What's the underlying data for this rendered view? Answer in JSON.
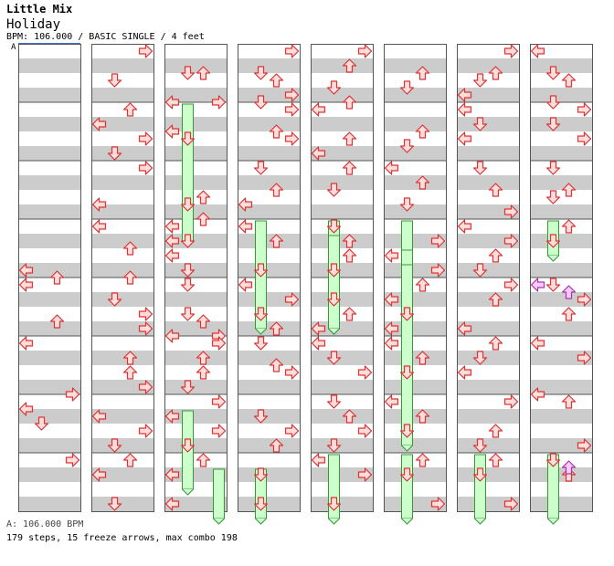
{
  "header": {
    "artist": "Little Mix",
    "title": "Holiday",
    "info": "BPM: 106.000 / BASIC SINGLE / 4 feet",
    "bpm_marker": "A"
  },
  "footer": {
    "bpm_line": "A: 106.000 BPM",
    "stats": "179 steps, 15 freeze arrows, max combo 198"
  },
  "colors": {
    "stripe": "#cccccc",
    "border": "#555555",
    "arrow_fill": "#ffdddd",
    "arrow_stroke": "#dd3333",
    "special_fill": "#ffccff",
    "special_stroke": "#aa33aa",
    "freeze_fill": "#ccffcc",
    "freeze_stroke": "#339933"
  },
  "chart": {
    "columns": 8,
    "measures_per_column": 8,
    "lanes": [
      "left",
      "down",
      "up",
      "right"
    ],
    "notes": [
      [
        0,
        3,
        3,
        1,
        "left"
      ],
      [
        0,
        3,
        3,
        3,
        "up"
      ],
      [
        0,
        4,
        0,
        1,
        "left"
      ],
      [
        0,
        4,
        2,
        3,
        "up"
      ],
      [
        0,
        5,
        0,
        1,
        "left"
      ],
      [
        0,
        5,
        3,
        3,
        "right"
      ],
      [
        0,
        6,
        1,
        3,
        "down"
      ],
      [
        0,
        6,
        0,
        3,
        "left"
      ],
      [
        0,
        7,
        0,
        1,
        "right"
      ],
      [
        1,
        0,
        0,
        1,
        "right"
      ],
      [
        1,
        0,
        2,
        2,
        "down"
      ],
      [
        1,
        1,
        0,
        1,
        "up"
      ],
      [
        1,
        1,
        1,
        2,
        "left"
      ],
      [
        1,
        1,
        2,
        1,
        "right"
      ],
      [
        1,
        1,
        3,
        1,
        "down"
      ],
      [
        1,
        2,
        0,
        1,
        "right"
      ],
      [
        1,
        2,
        2,
        3,
        "left"
      ],
      [
        1,
        3,
        0,
        1,
        "left"
      ],
      [
        1,
        3,
        1,
        3,
        "up"
      ],
      [
        1,
        3,
        3,
        3,
        "up"
      ],
      [
        1,
        4,
        1,
        1,
        "down"
      ],
      [
        1,
        4,
        2,
        1,
        "right"
      ],
      [
        1,
        4,
        3,
        1,
        "right"
      ],
      [
        1,
        5,
        1,
        1,
        "up"
      ],
      [
        1,
        5,
        2,
        1,
        "up"
      ],
      [
        1,
        5,
        3,
        1,
        "right"
      ],
      [
        1,
        6,
        1,
        1,
        "left"
      ],
      [
        1,
        6,
        2,
        1,
        "right"
      ],
      [
        1,
        6,
        3,
        1,
        "down"
      ],
      [
        1,
        7,
        0,
        1,
        "up"
      ],
      [
        1,
        7,
        1,
        1,
        "left"
      ],
      [
        1,
        7,
        3,
        1,
        "down"
      ],
      [
        2,
        0,
        1,
        3,
        "down"
      ],
      [
        2,
        0,
        1,
        3,
        "up"
      ],
      [
        2,
        0,
        3,
        3,
        "left"
      ],
      [
        2,
        0,
        3,
        3,
        "right"
      ],
      [
        2,
        1,
        1,
        3,
        "left"
      ],
      [
        2,
        1,
        2,
        1,
        "down"
      ],
      [
        2,
        2,
        2,
        1,
        "up"
      ],
      [
        2,
        2,
        2,
        3,
        "down"
      ],
      [
        2,
        2,
        3,
        3,
        "up"
      ],
      [
        2,
        3,
        0,
        1,
        "left"
      ],
      [
        2,
        3,
        1,
        1,
        "left"
      ],
      [
        2,
        3,
        1,
        1,
        "down"
      ],
      [
        2,
        3,
        2,
        1,
        "left"
      ],
      [
        2,
        3,
        3,
        1,
        "down"
      ],
      [
        2,
        4,
        0,
        1,
        "down"
      ],
      [
        2,
        4,
        2,
        1,
        "down"
      ],
      [
        2,
        4,
        2,
        3,
        "up"
      ],
      [
        2,
        4,
        3,
        3,
        "right"
      ],
      [
        2,
        4,
        3,
        3,
        "left"
      ],
      [
        2,
        5,
        0,
        1,
        "right"
      ],
      [
        2,
        5,
        1,
        1,
        "up"
      ],
      [
        2,
        5,
        2,
        1,
        "up"
      ],
      [
        2,
        5,
        3,
        1,
        "down"
      ],
      [
        2,
        6,
        0,
        1,
        "right"
      ],
      [
        2,
        6,
        1,
        1,
        "left"
      ],
      [
        2,
        6,
        2,
        1,
        "right"
      ],
      [
        2,
        6,
        3,
        1,
        "down"
      ],
      [
        2,
        7,
        0,
        1,
        "up"
      ],
      [
        2,
        7,
        1,
        1,
        "left"
      ],
      [
        2,
        7,
        3,
        1,
        "left"
      ],
      [
        3,
        0,
        0,
        1,
        "right"
      ],
      [
        3,
        0,
        1,
        3,
        "down"
      ],
      [
        3,
        0,
        2,
        1,
        "up"
      ],
      [
        3,
        0,
        3,
        3,
        "down"
      ],
      [
        3,
        0,
        3,
        1,
        "right"
      ],
      [
        3,
        1,
        0,
        1,
        "right"
      ],
      [
        3,
        1,
        1,
        3,
        "up"
      ],
      [
        3,
        1,
        2,
        1,
        "right"
      ],
      [
        3,
        2,
        0,
        1,
        "down"
      ],
      [
        3,
        2,
        1,
        3,
        "up"
      ],
      [
        3,
        2,
        2,
        3,
        "left"
      ],
      [
        3,
        3,
        0,
        1,
        "left"
      ],
      [
        3,
        3,
        1,
        1,
        "up"
      ],
      [
        3,
        3,
        3,
        1,
        "down"
      ],
      [
        3,
        4,
        0,
        1,
        "left"
      ],
      [
        3,
        4,
        1,
        1,
        "right"
      ],
      [
        3,
        4,
        2,
        1,
        "down"
      ],
      [
        3,
        4,
        3,
        1,
        "up"
      ],
      [
        3,
        5,
        0,
        1,
        "down"
      ],
      [
        3,
        5,
        1,
        3,
        "up"
      ],
      [
        3,
        5,
        2,
        1,
        "right"
      ],
      [
        3,
        6,
        1,
        1,
        "down"
      ],
      [
        3,
        6,
        2,
        1,
        "right"
      ],
      [
        3,
        6,
        3,
        1,
        "up"
      ],
      [
        3,
        7,
        1,
        1,
        "down"
      ],
      [
        3,
        7,
        3,
        1,
        "down"
      ],
      [
        4,
        0,
        0,
        1,
        "right"
      ],
      [
        4,
        0,
        1,
        1,
        "up"
      ],
      [
        4,
        0,
        2,
        3,
        "down"
      ],
      [
        4,
        0,
        3,
        3,
        "up"
      ],
      [
        4,
        1,
        0,
        1,
        "left"
      ],
      [
        4,
        1,
        2,
        1,
        "up"
      ],
      [
        4,
        1,
        3,
        1,
        "left"
      ],
      [
        4,
        2,
        0,
        1,
        "up"
      ],
      [
        4,
        2,
        1,
        3,
        "down"
      ],
      [
        4,
        3,
        0,
        1,
        "down"
      ],
      [
        4,
        3,
        1,
        1,
        "up"
      ],
      [
        4,
        3,
        2,
        1,
        "up"
      ],
      [
        4,
        3,
        3,
        1,
        "down"
      ],
      [
        4,
        4,
        1,
        1,
        "down"
      ],
      [
        4,
        4,
        2,
        1,
        "up"
      ],
      [
        4,
        4,
        3,
        1,
        "left"
      ],
      [
        4,
        5,
        0,
        1,
        "left"
      ],
      [
        4,
        5,
        1,
        1,
        "down"
      ],
      [
        4,
        5,
        2,
        1,
        "right"
      ],
      [
        4,
        6,
        0,
        1,
        "down"
      ],
      [
        4,
        6,
        1,
        1,
        "up"
      ],
      [
        4,
        6,
        2,
        1,
        "right"
      ],
      [
        4,
        6,
        3,
        1,
        "down"
      ],
      [
        4,
        7,
        0,
        1,
        "left"
      ],
      [
        4,
        7,
        1,
        1,
        "right"
      ],
      [
        4,
        7,
        3,
        1,
        "down"
      ],
      [
        5,
        0,
        1,
        3,
        "up"
      ],
      [
        5,
        0,
        2,
        3,
        "down"
      ],
      [
        5,
        1,
        1,
        3,
        "up"
      ],
      [
        5,
        1,
        2,
        3,
        "down"
      ],
      [
        5,
        2,
        0,
        1,
        "left"
      ],
      [
        5,
        2,
        1,
        1,
        "up"
      ],
      [
        5,
        2,
        2,
        3,
        "down"
      ],
      [
        5,
        3,
        1,
        1,
        "right"
      ],
      [
        5,
        3,
        2,
        1,
        "left"
      ],
      [
        5,
        3,
        3,
        1,
        "right"
      ],
      [
        5,
        4,
        0,
        1,
        "up"
      ],
      [
        5,
        4,
        1,
        1,
        "left"
      ],
      [
        5,
        4,
        2,
        1,
        "down"
      ],
      [
        5,
        4,
        3,
        1,
        "left"
      ],
      [
        5,
        5,
        0,
        1,
        "left"
      ],
      [
        5,
        5,
        1,
        1,
        "up"
      ],
      [
        5,
        5,
        2,
        1,
        "down"
      ],
      [
        5,
        6,
        0,
        1,
        "left"
      ],
      [
        5,
        6,
        1,
        1,
        "up"
      ],
      [
        5,
        6,
        2,
        1,
        "down"
      ],
      [
        5,
        7,
        0,
        1,
        "up"
      ],
      [
        5,
        7,
        1,
        1,
        "down"
      ],
      [
        5,
        7,
        3,
        1,
        "right"
      ],
      [
        6,
        0,
        0,
        1,
        "right"
      ],
      [
        6,
        0,
        1,
        3,
        "up"
      ],
      [
        6,
        0,
        2,
        1,
        "down"
      ],
      [
        6,
        0,
        3,
        1,
        "left"
      ],
      [
        6,
        1,
        0,
        1,
        "left"
      ],
      [
        6,
        1,
        1,
        1,
        "down"
      ],
      [
        6,
        1,
        2,
        1,
        "left"
      ],
      [
        6,
        2,
        0,
        1,
        "down"
      ],
      [
        6,
        2,
        1,
        3,
        "up"
      ],
      [
        6,
        2,
        3,
        1,
        "right"
      ],
      [
        6,
        3,
        0,
        1,
        "left"
      ],
      [
        6,
        3,
        1,
        1,
        "right"
      ],
      [
        6,
        3,
        2,
        1,
        "up"
      ],
      [
        6,
        3,
        3,
        1,
        "down"
      ],
      [
        6,
        4,
        0,
        1,
        "right"
      ],
      [
        6,
        4,
        1,
        1,
        "up"
      ],
      [
        6,
        4,
        3,
        1,
        "left"
      ],
      [
        6,
        5,
        0,
        1,
        "up"
      ],
      [
        6,
        5,
        1,
        1,
        "down"
      ],
      [
        6,
        5,
        2,
        1,
        "left"
      ],
      [
        6,
        6,
        0,
        1,
        "right"
      ],
      [
        6,
        6,
        2,
        1,
        "up"
      ],
      [
        6,
        6,
        3,
        1,
        "down"
      ],
      [
        6,
        7,
        0,
        1,
        "up"
      ],
      [
        6,
        7,
        1,
        1,
        "down"
      ],
      [
        6,
        7,
        3,
        1,
        "right"
      ],
      [
        7,
        0,
        0,
        1,
        "left"
      ],
      [
        7,
        0,
        1,
        3,
        "down"
      ],
      [
        7,
        0,
        2,
        1,
        "up"
      ],
      [
        7,
        0,
        3,
        3,
        "down"
      ],
      [
        7,
        1,
        0,
        1,
        "right"
      ],
      [
        7,
        1,
        1,
        1,
        "down"
      ],
      [
        7,
        1,
        2,
        1,
        "right"
      ],
      [
        7,
        2,
        0,
        1,
        "down"
      ],
      [
        7,
        2,
        1,
        3,
        "up"
      ],
      [
        7,
        2,
        2,
        1,
        "down"
      ],
      [
        7,
        3,
        0,
        1,
        "up"
      ],
      [
        7,
        3,
        1,
        1,
        "down"
      ],
      [
        7,
        4,
        0,
        1,
        "down"
      ],
      [
        7,
        4,
        1,
        1,
        "right"
      ],
      [
        7,
        4,
        2,
        1,
        "up"
      ],
      [
        7,
        5,
        0,
        1,
        "left"
      ],
      [
        7,
        5,
        1,
        1,
        "right"
      ],
      [
        7,
        5,
        3,
        3,
        "left"
      ],
      [
        7,
        6,
        0,
        1,
        "up"
      ],
      [
        7,
        6,
        3,
        1,
        "right"
      ],
      [
        7,
        7,
        0,
        1,
        "down"
      ],
      [
        7,
        7,
        1,
        1,
        "up"
      ]
    ],
    "freezes": [
      [
        2,
        1,
        0,
        1,
        3,
        1,
        "down"
      ],
      [
        2,
        6,
        1,
        1,
        7,
        2,
        "down"
      ],
      [
        2,
        7,
        1,
        3,
        8,
        0,
        "up"
      ],
      [
        3,
        3,
        0,
        1,
        4,
        3,
        "down"
      ],
      [
        3,
        7,
        1,
        1,
        8,
        0,
        "down"
      ],
      [
        4,
        3,
        0,
        1,
        4,
        3,
        "down"
      ],
      [
        4,
        3,
        1,
        1,
        4,
        3,
        "down"
      ],
      [
        4,
        7,
        0,
        1,
        8,
        0,
        "down"
      ],
      [
        5,
        3,
        0,
        1,
        3,
        3,
        "down"
      ],
      [
        5,
        3,
        2,
        1,
        4,
        1,
        "down"
      ],
      [
        5,
        3,
        3,
        1,
        6,
        3,
        "down"
      ],
      [
        5,
        7,
        0,
        1,
        8,
        0,
        "down"
      ],
      [
        6,
        7,
        0,
        1,
        8,
        0,
        "down"
      ],
      [
        7,
        7,
        0,
        1,
        8,
        0,
        "down"
      ],
      [
        7,
        3,
        0,
        1,
        3,
        2,
        "down"
      ]
    ],
    "specials": [
      [
        7,
        4,
        0,
        1,
        "left"
      ],
      [
        7,
        4,
        0,
        3,
        "up"
      ],
      [
        7,
        7,
        0,
        3,
        "up"
      ]
    ]
  }
}
